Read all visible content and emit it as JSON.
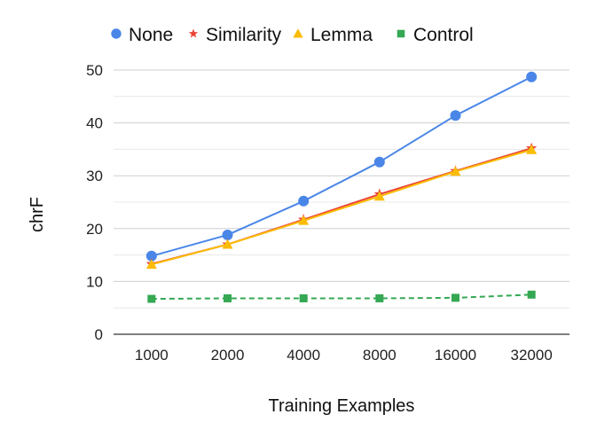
{
  "chart_data": {
    "type": "line",
    "title": "",
    "xlabel": "Training Examples",
    "ylabel": "chrF",
    "categories": [
      "1000",
      "2000",
      "4000",
      "8000",
      "16000",
      "32000"
    ],
    "ylim": [
      0,
      50
    ],
    "yticks": [
      0,
      10,
      20,
      30,
      40,
      50
    ],
    "grid": true,
    "legend_position": "top",
    "series": [
      {
        "name": "None",
        "color": "#4a86e8",
        "marker": "circle",
        "line_style": "solid",
        "values": [
          14.8,
          18.8,
          25.2,
          32.6,
          41.4,
          48.7
        ]
      },
      {
        "name": "Similarity",
        "color": "#ea4335",
        "marker": "star",
        "line_style": "solid",
        "values": [
          13.3,
          17.0,
          21.7,
          26.5,
          30.9,
          35.2
        ]
      },
      {
        "name": "Lemma",
        "color": "#fbbc04",
        "marker": "triangle",
        "line_style": "solid",
        "values": [
          13.2,
          17.0,
          21.5,
          26.1,
          30.8,
          34.9
        ]
      },
      {
        "name": "Control",
        "color": "#34a853",
        "marker": "square",
        "line_style": "dashed",
        "values": [
          6.7,
          6.8,
          6.8,
          6.8,
          6.9,
          7.5
        ]
      }
    ]
  }
}
